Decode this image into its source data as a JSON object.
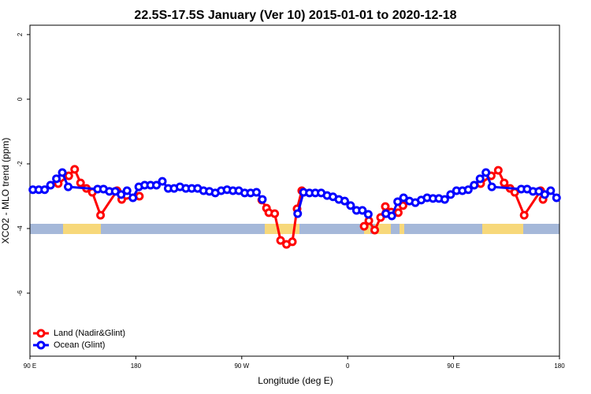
{
  "chart_data": {
    "type": "line",
    "title": "22.5S-17.5S January (Ver 10)   2015-01-01 to 2020-12-18",
    "x_label": "Longitude (deg E)",
    "y_label": "XCO2 - MLO trend (ppm)",
    "xlim": [
      90,
      540
    ],
    "ylim": [
      -7.95,
      2.29
    ],
    "xticks": [
      {
        "value": 90,
        "label": "90 E"
      },
      180,
      {
        "value": 270,
        "label": "90 W"
      },
      {
        "value": 360,
        "label": "0"
      },
      {
        "value": 450,
        "label": "90 E"
      },
      {
        "value": 540,
        "label": "180"
      }
    ],
    "yticks": [
      2,
      0,
      -2,
      -4,
      -6
    ],
    "legend": "bottomleft",
    "series": [
      {
        "name": "Land (Nadir&Glint)",
        "color": "#ff0000",
        "x": [
          114,
          123,
          128,
          133,
          138,
          143,
          150,
          164,
          168,
          183,
          230,
          287,
          291,
          293,
          298,
          303,
          308,
          313,
          317,
          321,
          350,
          374,
          378,
          383,
          388,
          392,
          397,
          403,
          407,
          440,
          473,
          482,
          488,
          493,
          498,
          502,
          510,
          524,
          526
        ],
        "values": [
          -2.61,
          -2.37,
          -2.17,
          -2.59,
          -2.76,
          -2.88,
          -3.59,
          -2.83,
          -3.1,
          -3.0,
          null,
          -3.12,
          -3.37,
          -3.51,
          -3.54,
          -4.37,
          -4.49,
          -4.41,
          -3.39,
          -2.83,
          null,
          -3.93,
          -3.76,
          -4.05,
          -3.66,
          -3.32,
          -3.49,
          -3.51,
          -3.29,
          null,
          -2.61,
          -2.37,
          -2.2,
          -2.59,
          -2.76,
          -2.88,
          -3.59,
          -2.83,
          -3.1
        ]
      },
      {
        "name": "Ocean (Glint)",
        "color": "#0000ff",
        "x": [
          92.5,
          97.5,
          102.5,
          107.5,
          112.5,
          117.5,
          122.5,
          147.5,
          152.5,
          157.5,
          162.5,
          167.5,
          172.5,
          177.5,
          182.5,
          187.5,
          192.5,
          197.5,
          202.5,
          207.5,
          212.5,
          217.5,
          222.5,
          227.5,
          232.5,
          237.5,
          242.5,
          247.5,
          252.5,
          257.5,
          262.5,
          267.5,
          272.5,
          277.5,
          282.5,
          287.5,
          302.5,
          317.5,
          322.5,
          327.5,
          332.5,
          337.5,
          342.5,
          347.5,
          352.5,
          357.5,
          362.5,
          367.5,
          372.5,
          377.5,
          385,
          392.5,
          397.5,
          402.5,
          407.5,
          412.5,
          417.5,
          422.5,
          427.5,
          432.5,
          437.5,
          442.5,
          447.5,
          452.5,
          457.5,
          462.5,
          467.5,
          472.5,
          477.5,
          482.5,
          507.5,
          512.5,
          517.5,
          522.5,
          527.5,
          532.5,
          537.5
        ],
        "values": [
          -2.8,
          -2.8,
          -2.8,
          -2.66,
          -2.46,
          -2.27,
          -2.71,
          -2.78,
          -2.78,
          -2.85,
          -2.85,
          -2.95,
          -2.83,
          -3.05,
          -2.71,
          -2.66,
          -2.66,
          -2.66,
          -2.54,
          -2.76,
          -2.76,
          -2.71,
          -2.76,
          -2.76,
          -2.76,
          -2.83,
          -2.85,
          -2.9,
          -2.83,
          -2.8,
          -2.83,
          -2.83,
          -2.9,
          -2.9,
          -2.88,
          -3.1,
          null,
          -3.54,
          -2.88,
          -2.9,
          -2.9,
          -2.9,
          -2.98,
          -3.02,
          -3.1,
          -3.15,
          -3.29,
          -3.44,
          -3.44,
          -3.56,
          null,
          -3.54,
          -3.61,
          -3.17,
          -3.05,
          -3.15,
          -3.2,
          -3.12,
          -3.05,
          -3.07,
          -3.07,
          -3.1,
          -2.95,
          -2.83,
          -2.83,
          -2.8,
          -2.66,
          -2.46,
          -2.27,
          -2.71,
          -2.78,
          -2.78,
          -2.85,
          -2.85,
          -2.95,
          -2.83,
          -3.05
        ]
      }
    ]
  }
}
